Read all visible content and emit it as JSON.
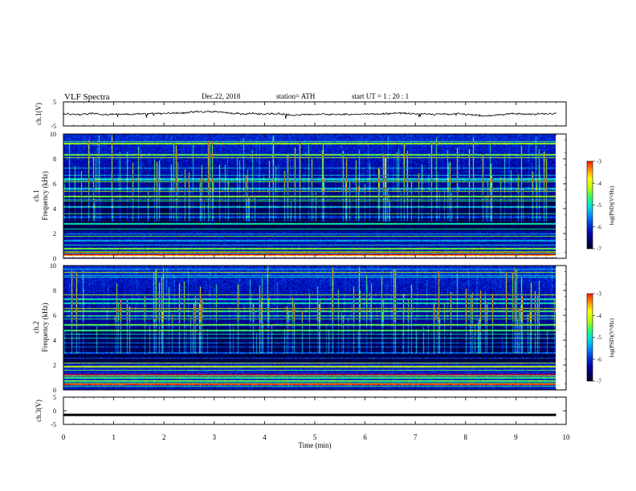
{
  "header": {
    "title": "VLF  Spectra",
    "date": "Dec.22, 2018",
    "station": "station= ATH",
    "start_ut": "start  UT  =   1  : 20 : 1"
  },
  "colors": {
    "spectrogram_palette": [
      "#000000",
      "#00004a",
      "#0000a0",
      "#0030e0",
      "#0090ff",
      "#00e0e0",
      "#30ff60",
      "#c0ff00",
      "#ffff00",
      "#ff8000",
      "#ff0000",
      "#ffffff"
    ],
    "trace": "#000000"
  },
  "chart_data": [
    {
      "type": "line",
      "name": "ch1-waveform",
      "ylabel": "ch.1(V)",
      "ylim": [
        -5,
        5
      ],
      "y_ticks": [
        "5",
        "-5"
      ],
      "x_range_min": [
        0,
        9.8
      ],
      "approx_level_v": 0,
      "approx_range_v": [
        -1,
        1
      ]
    },
    {
      "type": "heatmap",
      "name": "ch1-spectrogram",
      "ylabel_line1": "ch.1",
      "ylabel_line2": "Frequency  (kHz)",
      "ylim": [
        0,
        10
      ],
      "y_ticks": [
        "10",
        "8",
        "6",
        "4",
        "2",
        "0"
      ],
      "x_range_min": [
        0,
        9.8
      ],
      "colorbar": {
        "label": "log(PSD)(V²/Hz)",
        "range": [
          -7,
          -3
        ],
        "ticks": [
          "-3",
          "-4",
          "-5",
          "-6",
          "-7"
        ]
      }
    },
    {
      "type": "heatmap",
      "name": "ch2-spectrogram",
      "ylabel_line1": "ch.2",
      "ylabel_line2": "Frequency  (kHz)",
      "ylim": [
        0,
        10
      ],
      "y_ticks": [
        "10",
        "8",
        "6",
        "4",
        "2",
        "0"
      ],
      "x_range_min": [
        0,
        9.8
      ],
      "colorbar": {
        "label": "log(PSD)(V²/Hz)",
        "range": [
          -7,
          -3
        ],
        "ticks": [
          "-3",
          "-4",
          "-5",
          "-6",
          "-7"
        ]
      }
    },
    {
      "type": "line",
      "name": "ch3-waveform",
      "ylabel": "ch.3(V)",
      "ylim": [
        -5,
        5
      ],
      "y_ticks": [
        "5",
        "0",
        "-5"
      ],
      "x_range_min": [
        0,
        9.8
      ],
      "approx_level_v": -1.5
    }
  ],
  "x_axis": {
    "label": "Time  (min)",
    "range": [
      0,
      10
    ],
    "ticks": [
      "0",
      "1",
      "2",
      "3",
      "4",
      "5",
      "6",
      "7",
      "8",
      "9",
      "10"
    ]
  }
}
